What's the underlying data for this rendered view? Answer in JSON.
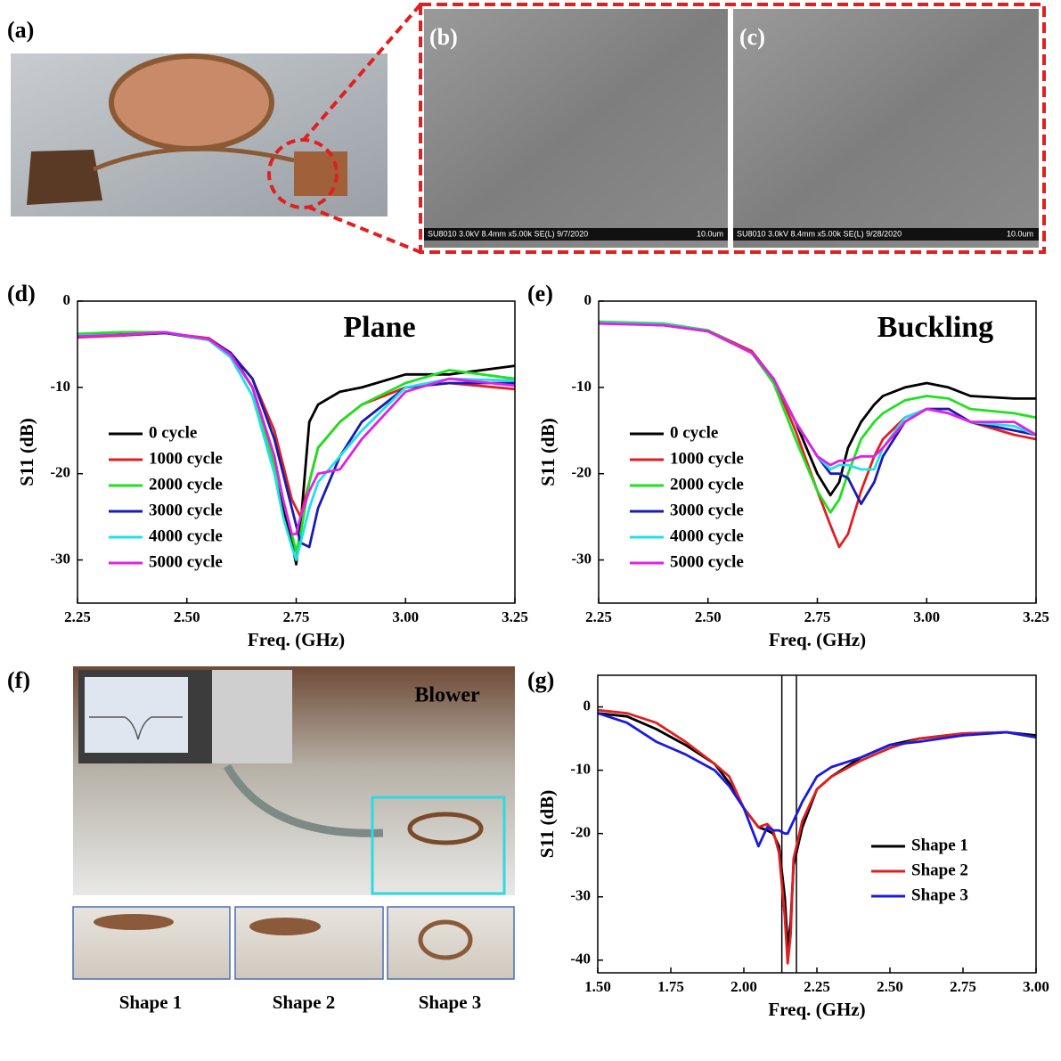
{
  "panels": {
    "a": "(a)",
    "b": "(b)",
    "c": "(c)",
    "f": "(f)"
  },
  "sem": [
    {
      "caption": "SU8010 3.0kV 8.4mm x5.00k SE(L) 9/7/2020",
      "scale": "10.0um"
    },
    {
      "caption": "SU8010 3.0kV 8.4mm x5.00k SE(L) 9/28/2020",
      "scale": "10.0um"
    }
  ],
  "photo_f": {
    "label": "Blower",
    "shapes": [
      "Shape 1",
      "Shape 2",
      "Shape 3"
    ]
  },
  "chart_data": [
    {
      "type": "line",
      "panel": "(d)",
      "annotation": "Plane",
      "xlabel": "Freq. (GHz)",
      "ylabel": "S11 (dB)",
      "xlim": [
        2.25,
        3.25
      ],
      "ylim": [
        -35,
        0
      ],
      "xticks": [
        2.25,
        {
          "value": 2.5,
          "label": "2.50"
        },
        2.75,
        {
          "value": 3,
          "label": "3.00"
        },
        3.25
      ],
      "yticks": [
        -30,
        -20,
        -10,
        0
      ],
      "legend": "lower left",
      "x": [
        2.25,
        2.35,
        2.45,
        2.55,
        2.6,
        2.65,
        2.7,
        2.72,
        2.74,
        2.75,
        2.76,
        2.78,
        2.8,
        2.85,
        2.9,
        3.0,
        3.1,
        3.25
      ],
      "series": [
        {
          "name": "0 cycle",
          "color": "#000000",
          "values": [
            -4,
            -3.8,
            -3.7,
            -4.5,
            -6,
            -10,
            -18,
            -24,
            -28,
            -30.5,
            -26,
            -14,
            -12,
            -10.5,
            -10,
            -8.5,
            -8.5,
            -7.5
          ]
        },
        {
          "name": "1000 cycle",
          "color": "#e02020",
          "values": [
            -4.2,
            -4,
            -3.7,
            -4.3,
            -6,
            -9,
            -15,
            -19,
            -23,
            -24,
            -25,
            -21,
            -17,
            -14,
            -12,
            -10,
            -9.5,
            -10.2
          ]
        },
        {
          "name": "2000 cycle",
          "color": "#20e020",
          "values": [
            -3.8,
            -3.6,
            -3.6,
            -4.5,
            -6.5,
            -11,
            -19,
            -23,
            -27,
            -29,
            -27,
            -21,
            -17,
            -14,
            -12,
            -9.5,
            -8,
            -9
          ]
        },
        {
          "name": "3000 cycle",
          "color": "#1a1ab4",
          "values": [
            -4,
            -3.9,
            -3.7,
            -4.4,
            -6,
            -9,
            -16,
            -20,
            -24,
            -26,
            -28,
            -28.5,
            -24,
            -18,
            -14,
            -10,
            -9.5,
            -9.5
          ]
        },
        {
          "name": "4000 cycle",
          "color": "#20e0e8",
          "values": [
            -4,
            -3.9,
            -3.6,
            -4.5,
            -6.5,
            -11,
            -20,
            -25,
            -28.5,
            -30,
            -28,
            -24,
            -21,
            -18,
            -15,
            -10,
            -9,
            -9.2
          ]
        },
        {
          "name": "5000 cycle",
          "color": "#e020e8",
          "values": [
            -4.1,
            -3.9,
            -3.6,
            -4.4,
            -6.2,
            -10,
            -18,
            -23,
            -27,
            -27,
            -25,
            -22,
            -20,
            -19.5,
            -16,
            -10.5,
            -9,
            -9.8
          ]
        }
      ]
    },
    {
      "type": "line",
      "panel": "(e)",
      "annotation": "Buckling",
      "xlabel": "Freq. (GHz)",
      "ylabel": "S11 (dB)",
      "xlim": [
        2.25,
        3.25
      ],
      "ylim": [
        -35,
        0
      ],
      "xticks": [
        2.25,
        {
          "value": 2.5,
          "label": "2.50"
        },
        2.75,
        {
          "value": 3,
          "label": "3.00"
        },
        3.25
      ],
      "yticks": [
        -30,
        -20,
        -10,
        0
      ],
      "legend": "lower left",
      "x": [
        2.25,
        2.4,
        2.5,
        2.6,
        2.65,
        2.7,
        2.75,
        2.78,
        2.8,
        2.82,
        2.85,
        2.88,
        2.9,
        2.95,
        3.0,
        3.05,
        3.1,
        3.2,
        3.25
      ],
      "series": [
        {
          "name": "0 cycle",
          "color": "#000000",
          "values": [
            -2.5,
            -2.8,
            -3.5,
            -6,
            -9,
            -14,
            -20,
            -22.5,
            -21,
            -17,
            -14,
            -12,
            -11,
            -10,
            -9.5,
            -10,
            -11,
            -11.3,
            -11.3
          ]
        },
        {
          "name": "1000 cycle",
          "color": "#e02020",
          "values": [
            -2.5,
            -2.7,
            -3.4,
            -5.8,
            -9,
            -15,
            -22,
            -26,
            -28.5,
            -27,
            -22,
            -18,
            -16,
            -13.5,
            -12.5,
            -12.5,
            -14,
            -15.5,
            -16
          ]
        },
        {
          "name": "2000 cycle",
          "color": "#20e020",
          "values": [
            -2.4,
            -2.6,
            -3.4,
            -6,
            -9.5,
            -16,
            -22,
            -24.5,
            -23,
            -20,
            -16,
            -14,
            -13,
            -11.5,
            -11,
            -11.3,
            -12.5,
            -13,
            -13.5
          ]
        },
        {
          "name": "3000 cycle",
          "color": "#1a1ab4",
          "values": [
            -2.5,
            -2.8,
            -3.5,
            -6,
            -9,
            -14,
            -18,
            -20,
            -20,
            -20.5,
            -23.5,
            -21,
            -18,
            -14,
            -12.5,
            -12.5,
            -14,
            -15,
            -15.5
          ]
        },
        {
          "name": "4000 cycle",
          "color": "#20e0e8",
          "values": [
            -2.5,
            -2.7,
            -3.5,
            -6,
            -9,
            -14,
            -18,
            -19.5,
            -19,
            -19,
            -19.5,
            -19.5,
            -17,
            -13.5,
            -12.5,
            -13,
            -14,
            -14.5,
            -15.5
          ]
        },
        {
          "name": "5000 cycle",
          "color": "#e020e8",
          "values": [
            -2.6,
            -2.8,
            -3.5,
            -6,
            -9,
            -14,
            -18,
            -19,
            -18.5,
            -18.5,
            -18,
            -18,
            -17,
            -14,
            -12.5,
            -13,
            -14,
            -14,
            -15.5
          ]
        }
      ]
    },
    {
      "type": "line",
      "panel": "(g)",
      "xlabel": "Freq. (GHz)",
      "ylabel": "S11 (dB)",
      "xlim": [
        1.5,
        3
      ],
      "ylim": [
        -42,
        5
      ],
      "xticks": [
        {
          "value": 1.5,
          "label": "1.50"
        },
        1.75,
        {
          "value": 2,
          "label": "2.00"
        },
        2.25,
        {
          "value": 2.5,
          "label": "2.50"
        },
        2.75,
        {
          "value": 3,
          "label": "3.00"
        }
      ],
      "yticks": [
        -40,
        -30,
        -20,
        -10,
        0
      ],
      "legend": "center right",
      "highlight": [
        2.13,
        2.18
      ],
      "x": [
        1.5,
        1.6,
        1.7,
        1.8,
        1.9,
        1.95,
        2.0,
        2.05,
        2.08,
        2.1,
        2.12,
        2.14,
        2.15,
        2.16,
        2.17,
        2.2,
        2.25,
        2.3,
        2.4,
        2.5,
        2.6,
        2.75,
        2.9,
        3.0
      ],
      "series": [
        {
          "name": "Shape 1",
          "color": "#000000",
          "values": [
            -1,
            -1.5,
            -3.5,
            -6,
            -9,
            -12,
            -16,
            -19,
            -19.5,
            -20,
            -22,
            -30,
            -38,
            -34,
            -25,
            -19,
            -13,
            -11,
            -8,
            -6,
            -5,
            -4.2,
            -4,
            -4.5
          ]
        },
        {
          "name": "Shape 2",
          "color": "#e02020",
          "values": [
            -0.5,
            -1,
            -2.5,
            -5.5,
            -9,
            -11,
            -16,
            -19,
            -18.5,
            -19.5,
            -23,
            -33,
            -40.5,
            -36,
            -24,
            -18,
            -13,
            -11,
            -8.5,
            -6.5,
            -5,
            -4.2,
            -4,
            -4.8
          ]
        },
        {
          "name": "Shape 3",
          "color": "#1a1ae0",
          "values": [
            -1,
            -2.5,
            -5.5,
            -7.5,
            -10,
            -12.5,
            -16,
            -22,
            -19,
            -19.5,
            -19.5,
            -20,
            -20,
            -19,
            -18,
            -15,
            -11,
            -9.5,
            -8,
            -6,
            -5.5,
            -4.5,
            -4,
            -4.8
          ]
        }
      ]
    }
  ]
}
